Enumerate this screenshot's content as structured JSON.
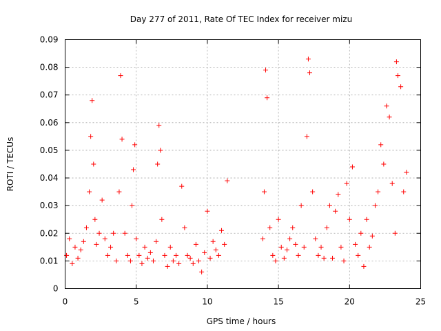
{
  "chart_data": {
    "type": "scatter",
    "title": "Day 277 of 2011, Rate Of TEC Index for receiver mizu",
    "xlabel": "GPS time / hours",
    "ylabel": "ROTI / TECUs",
    "xlim": [
      0,
      25
    ],
    "ylim": [
      0,
      0.09
    ],
    "x_ticks": [
      0,
      5,
      10,
      15,
      20,
      25
    ],
    "x_tick_labels": [
      "0",
      "5",
      "10",
      "15",
      "20",
      "25"
    ],
    "y_ticks": [
      0,
      0.01,
      0.02,
      0.03,
      0.04,
      0.05,
      0.06,
      0.07,
      0.08,
      0.09
    ],
    "y_tick_labels": [
      "0",
      "0.01",
      "0.02",
      "0.03",
      "0.04",
      "0.05",
      "0.06",
      "0.07",
      "0.08",
      "0.09"
    ],
    "grid": true,
    "marker": "plus",
    "color": "#ff0000",
    "series": [
      {
        "name": "ROTI",
        "color": "#ff0000",
        "x": [
          0.1,
          0.3,
          0.5,
          0.7,
          0.9,
          1.1,
          1.3,
          1.5,
          1.7,
          1.8,
          1.9,
          2.0,
          2.1,
          2.2,
          2.4,
          2.6,
          2.8,
          3.0,
          3.2,
          3.4,
          3.6,
          3.8,
          3.9,
          4.0,
          4.2,
          4.4,
          4.6,
          4.7,
          4.8,
          4.9,
          5.0,
          5.2,
          5.4,
          5.6,
          5.8,
          6.0,
          6.2,
          6.4,
          6.5,
          6.6,
          6.7,
          6.8,
          7.0,
          7.2,
          7.4,
          7.6,
          7.8,
          8.0,
          8.2,
          8.4,
          8.6,
          8.8,
          9.0,
          9.2,
          9.4,
          9.6,
          9.8,
          10.0,
          10.2,
          10.4,
          10.6,
          10.8,
          11.0,
          11.2,
          11.4,
          13.9,
          14.0,
          14.1,
          14.2,
          14.4,
          14.6,
          14.8,
          15.0,
          15.2,
          15.4,
          15.6,
          15.8,
          16.0,
          16.2,
          16.4,
          16.6,
          16.8,
          17.0,
          17.1,
          17.2,
          17.4,
          17.6,
          17.8,
          18.0,
          18.2,
          18.4,
          18.6,
          18.8,
          19.0,
          19.2,
          19.4,
          19.6,
          19.8,
          20.0,
          20.2,
          20.4,
          20.6,
          20.8,
          21.0,
          21.2,
          21.4,
          21.6,
          21.8,
          22.0,
          22.2,
          22.4,
          22.6,
          22.8,
          23.0,
          23.2,
          23.3,
          23.4,
          23.6,
          23.8,
          24.0
        ],
        "y": [
          0.012,
          0.018,
          0.009,
          0.015,
          0.011,
          0.014,
          0.017,
          0.022,
          0.035,
          0.055,
          0.068,
          0.045,
          0.025,
          0.016,
          0.02,
          0.032,
          0.018,
          0.012,
          0.015,
          0.02,
          0.01,
          0.035,
          0.077,
          0.054,
          0.02,
          0.012,
          0.01,
          0.03,
          0.043,
          0.052,
          0.018,
          0.012,
          0.009,
          0.015,
          0.011,
          0.013,
          0.01,
          0.017,
          0.045,
          0.059,
          0.05,
          0.025,
          0.012,
          0.008,
          0.015,
          0.01,
          0.012,
          0.009,
          0.037,
          0.022,
          0.012,
          0.011,
          0.009,
          0.016,
          0.01,
          0.006,
          0.013,
          0.028,
          0.011,
          0.017,
          0.014,
          0.012,
          0.021,
          0.016,
          0.039,
          0.018,
          0.035,
          0.079,
          0.069,
          0.022,
          0.012,
          0.01,
          0.025,
          0.015,
          0.011,
          0.014,
          0.018,
          0.022,
          0.016,
          0.012,
          0.03,
          0.015,
          0.055,
          0.083,
          0.078,
          0.035,
          0.018,
          0.012,
          0.015,
          0.011,
          0.022,
          0.03,
          0.011,
          0.028,
          0.034,
          0.015,
          0.01,
          0.038,
          0.025,
          0.044,
          0.016,
          0.012,
          0.02,
          0.008,
          0.025,
          0.015,
          0.019,
          0.03,
          0.035,
          0.052,
          0.045,
          0.066,
          0.062,
          0.038,
          0.02,
          0.082,
          0.077,
          0.073,
          0.035,
          0.042
        ]
      }
    ]
  }
}
